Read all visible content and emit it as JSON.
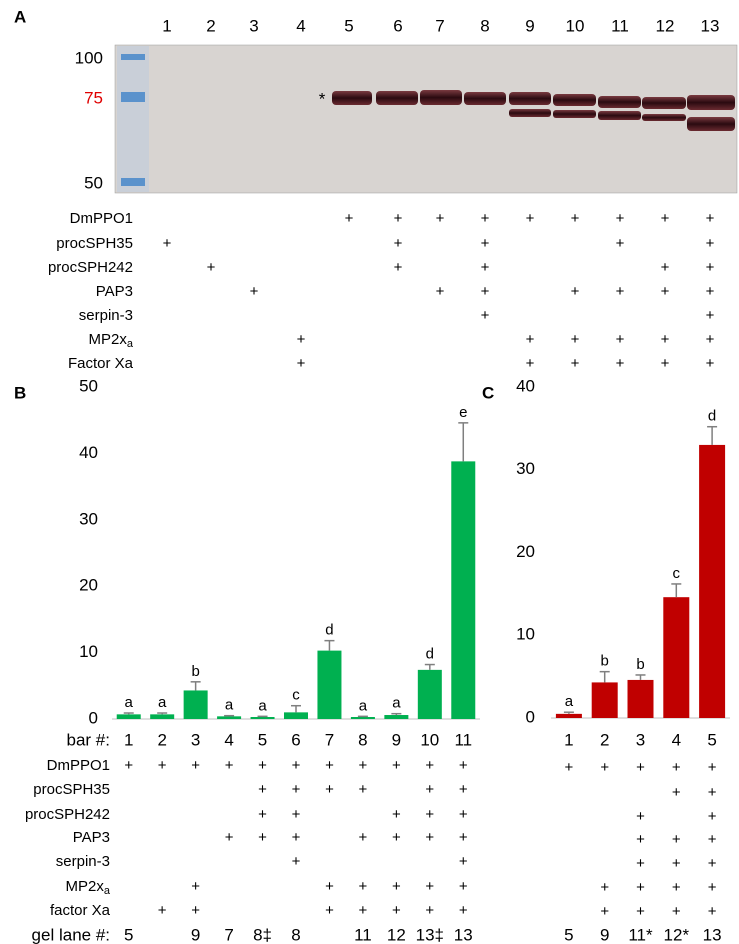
{
  "panel_labels": [
    "A",
    "B",
    "C"
  ],
  "gel": {
    "lanes": [
      "1",
      "2",
      "3",
      "4",
      "5",
      "6",
      "7",
      "8",
      "9",
      "10",
      "11",
      "12",
      "13"
    ],
    "marker_labels": [
      "100",
      "75",
      "50"
    ],
    "marker_colors": [
      "#000000",
      "#e00000",
      "#000000"
    ],
    "band_mark": "*",
    "conditions": [
      {
        "name": "DmPPO1",
        "marks": [
          null,
          null,
          null,
          null,
          "+",
          "+",
          "+",
          "+",
          "+",
          "+",
          "+",
          "+",
          "+"
        ]
      },
      {
        "name": "procSPH35",
        "marks": [
          "+",
          null,
          null,
          null,
          null,
          "+",
          null,
          "+",
          null,
          null,
          "+",
          null,
          "+"
        ]
      },
      {
        "name": "procSPH242",
        "marks": [
          null,
          "+",
          null,
          null,
          null,
          "+",
          null,
          "+",
          null,
          null,
          null,
          "+",
          "+"
        ]
      },
      {
        "name": "PAP3",
        "marks": [
          null,
          null,
          "+",
          null,
          null,
          null,
          "+",
          "+",
          null,
          "+",
          "+",
          "+",
          "+"
        ]
      },
      {
        "name": "serpin-3",
        "marks": [
          null,
          null,
          null,
          null,
          null,
          null,
          null,
          "+",
          null,
          null,
          null,
          null,
          "+"
        ]
      },
      {
        "name": {
          "text": "MP2x",
          "sub": "a"
        },
        "marks": [
          null,
          null,
          null,
          "+",
          null,
          null,
          null,
          null,
          "+",
          "+",
          "+",
          "+",
          "+"
        ]
      },
      {
        "name": "Factor Xa",
        "marks": [
          null,
          null,
          null,
          "+",
          null,
          null,
          null,
          null,
          "+",
          "+",
          "+",
          "+",
          "+"
        ]
      }
    ]
  },
  "chart_data": [
    {
      "type": "bar",
      "color": "#00b050",
      "error_color": "#7f7f7f",
      "bar_label": "bar #:",
      "categories": [
        "1",
        "2",
        "3",
        "4",
        "5",
        "6",
        "7",
        "8",
        "9",
        "10",
        "11"
      ],
      "values": [
        0.7,
        0.7,
        4.3,
        0.4,
        0.3,
        1.0,
        10.3,
        0.3,
        0.6,
        7.4,
        38.8
      ],
      "errors": [
        0.2,
        0.2,
        1.3,
        0.1,
        0.1,
        1.0,
        1.5,
        0.1,
        0.2,
        0.8,
        5.8
      ],
      "group_letters": [
        "a",
        "a",
        "b",
        "a",
        "a",
        "c",
        "d",
        "a",
        "a",
        "d",
        "e"
      ],
      "ylim": [
        0,
        50
      ],
      "yticks": [
        0,
        10,
        20,
        30,
        40,
        50
      ],
      "conditions": [
        {
          "name": "DmPPO1",
          "marks": [
            "+",
            "+",
            "+",
            "+",
            "+",
            "+",
            "+",
            "+",
            "+",
            "+",
            "+"
          ]
        },
        {
          "name": "procSPH35",
          "marks": [
            null,
            null,
            null,
            null,
            "+",
            "+",
            "+",
            "+",
            null,
            "+",
            "+"
          ]
        },
        {
          "name": "procSPH242",
          "marks": [
            null,
            null,
            null,
            null,
            "+",
            "+",
            null,
            null,
            "+",
            "+",
            "+"
          ]
        },
        {
          "name": "PAP3",
          "marks": [
            null,
            null,
            null,
            "+",
            "+",
            "+",
            null,
            "+",
            "+",
            "+",
            "+"
          ]
        },
        {
          "name": "serpin-3",
          "marks": [
            null,
            null,
            null,
            null,
            null,
            "+",
            null,
            null,
            null,
            null,
            "+"
          ]
        },
        {
          "name": {
            "text": "MP2x",
            "sub": "a"
          },
          "marks": [
            null,
            null,
            "+",
            null,
            null,
            null,
            "+",
            "+",
            "+",
            "+",
            "+"
          ]
        },
        {
          "name": "factor Xa",
          "marks": [
            null,
            "+",
            "+",
            null,
            null,
            null,
            "+",
            "+",
            "+",
            "+",
            "+"
          ]
        }
      ],
      "gel_lane_label": "gel lane #:",
      "gel_lanes": [
        "5",
        null,
        "9",
        "7",
        "8‡",
        "8",
        null,
        "11",
        "12",
        "13‡",
        "13"
      ]
    },
    {
      "type": "bar",
      "color": "#c00000",
      "error_color": "#7f7f7f",
      "categories": [
        "1",
        "2",
        "3",
        "4",
        "5"
      ],
      "values": [
        0.5,
        4.3,
        4.6,
        14.6,
        33.0
      ],
      "errors": [
        0.2,
        1.3,
        0.6,
        1.6,
        2.2
      ],
      "group_letters": [
        "a",
        "b",
        "b",
        "c",
        "d"
      ],
      "ylim": [
        0,
        40
      ],
      "yticks": [
        0,
        10,
        20,
        30,
        40
      ],
      "conditions": [
        {
          "marks": [
            "+",
            "+",
            "+",
            "+",
            "+"
          ]
        },
        {
          "marks": [
            null,
            null,
            null,
            "+",
            "+"
          ]
        },
        {
          "marks": [
            null,
            null,
            "+",
            null,
            "+"
          ]
        },
        {
          "marks": [
            null,
            null,
            "+",
            "+",
            "+"
          ]
        },
        {
          "marks": [
            null,
            null,
            "+",
            "+",
            "+"
          ]
        },
        {
          "marks": [
            null,
            "+",
            "+",
            "+",
            "+"
          ]
        },
        {
          "marks": [
            null,
            "+",
            "+",
            "+",
            "+"
          ]
        }
      ],
      "gel_lanes": [
        "5",
        "9",
        "11*",
        "12*",
        "13"
      ]
    }
  ]
}
